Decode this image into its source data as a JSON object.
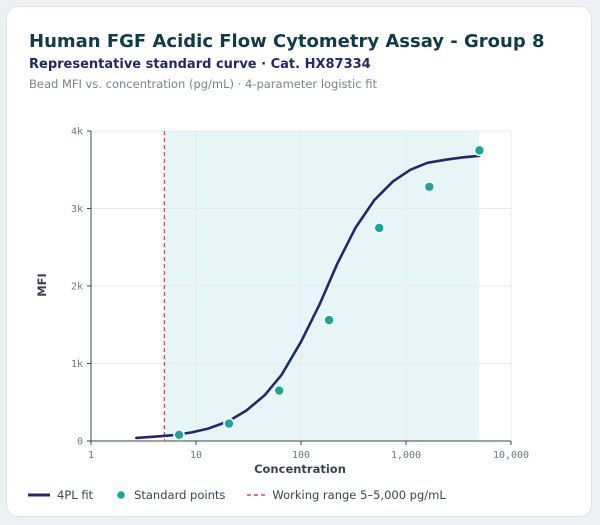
{
  "header": {
    "title": "Human FGF Acidic Flow Cytometry Assay - Group 8",
    "subtitle": "Representative standard curve · Cat. HX87334",
    "caption": "Bead MFI vs. concentration (pg/mL) · 4-parameter logistic fit"
  },
  "colors": {
    "curve": "#23286e",
    "points": "#1aa59a",
    "working_range": "#d04a5a",
    "working_band": "#e6f6f7"
  },
  "chart_data": {
    "type": "scatter",
    "title": "Human FGF Acidic Flow Cytometry Assay - Group 8",
    "subtitle": "Representative standard curve · Cat. HX87334",
    "xlabel": "Concentration",
    "ylabel": "MFI",
    "xscale": "log",
    "xlim": [
      1,
      10000
    ],
    "ylim": [
      0,
      4000
    ],
    "x_ticks": [
      1,
      10,
      100,
      1000,
      10000
    ],
    "x_tick_labels": [
      "1",
      "10",
      "100",
      "1,000",
      "10,000"
    ],
    "y_ticks": [
      0,
      1000,
      2000,
      3000,
      4000
    ],
    "y_tick_labels": [
      "0",
      "1k",
      "2k",
      "3k",
      "4k"
    ],
    "grid": true,
    "legend_position": "bottom-left",
    "series": [
      {
        "name": "Standard points",
        "x": [
          6.9,
          20.6,
          62,
          185,
          556,
          1667,
          5000
        ],
        "y": [
          80,
          225,
          650,
          1560,
          2750,
          3280,
          3750
        ]
      }
    ],
    "fit_curve": {
      "name": "4PL fit",
      "x": [
        2.7,
        4,
        6,
        9,
        13,
        20,
        30,
        45,
        65,
        100,
        150,
        220,
        330,
        500,
        750,
        1100,
        1600,
        2400,
        3500,
        5000
      ],
      "y": [
        40,
        55,
        75,
        110,
        160,
        250,
        390,
        590,
        850,
        1280,
        1760,
        2280,
        2750,
        3110,
        3350,
        3500,
        3590,
        3630,
        3660,
        3680
      ]
    },
    "working_range": {
      "label": "Working range 5–5,000 pg/mL",
      "min": 5,
      "max": 5000
    },
    "legend": [
      "4PL fit",
      "Standard points",
      "Working range 5–5,000 pg/mL"
    ]
  }
}
